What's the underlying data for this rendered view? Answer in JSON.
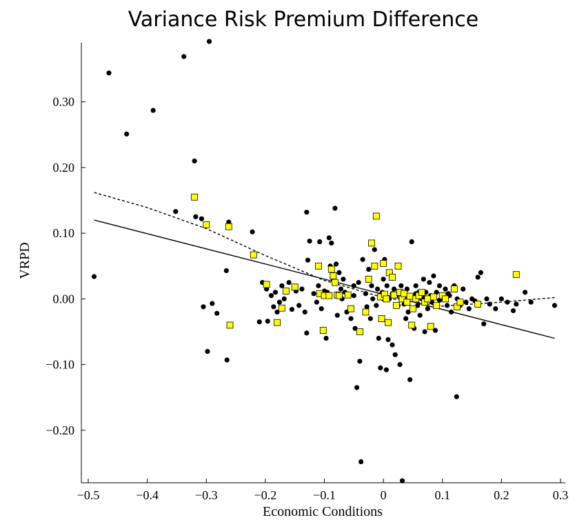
{
  "chart_data": {
    "type": "scatter",
    "title": "Variance Risk Premium Difference",
    "xlabel": "Economic Conditions",
    "ylabel": "VRPD",
    "xlim": [
      -0.5,
      0.3
    ],
    "ylim": [
      -0.28,
      0.39
    ],
    "x_ticks": [
      -0.5,
      -0.4,
      -0.3,
      -0.2,
      -0.1,
      0,
      0.1,
      0.2,
      0.3
    ],
    "x_tick_labels": [
      "−0.5",
      "−0.4",
      "−0.3",
      "−0.2",
      "−0.1",
      "0",
      "0.1",
      "0.2",
      "0.3"
    ],
    "y_ticks": [
      -0.2,
      -0.1,
      0,
      0.1,
      0.2,
      0.3
    ],
    "y_tick_labels": [
      "−0.20",
      "−0.10",
      "0.00",
      "0.10",
      "0.20",
      "0.30"
    ],
    "grid": false,
    "colors": {
      "dots": "#000000",
      "squares": "#ffff00",
      "square_edge": "#000000",
      "lines": "#000000"
    },
    "series": [
      {
        "marker": "circle",
        "points": [
          [
            -0.49,
            0.034
          ],
          [
            -0.465,
            0.344
          ],
          [
            -0.435,
            0.251
          ],
          [
            -0.39,
            0.287
          ],
          [
            -0.338,
            0.369
          ],
          [
            -0.295,
            0.392
          ],
          [
            -0.352,
            0.133
          ],
          [
            -0.32,
            0.21
          ],
          [
            -0.318,
            0.125
          ],
          [
            -0.308,
            0.122
          ],
          [
            -0.305,
            -0.012
          ],
          [
            -0.298,
            -0.08
          ],
          [
            -0.29,
            -0.007
          ],
          [
            -0.282,
            -0.022
          ],
          [
            -0.266,
            0.043
          ],
          [
            -0.265,
            -0.093
          ],
          [
            -0.262,
            0.117
          ],
          [
            -0.222,
            0.102
          ],
          [
            -0.21,
            -0.035
          ],
          [
            -0.205,
            0.025
          ],
          [
            -0.198,
            0.015
          ],
          [
            -0.196,
            -0.034
          ],
          [
            -0.19,
            0.005
          ],
          [
            -0.186,
            -0.012
          ],
          [
            -0.183,
            0.01
          ],
          [
            -0.18,
            -0.02
          ],
          [
            -0.176,
            -0.005
          ],
          [
            -0.172,
            0.02
          ],
          [
            -0.168,
            0.0
          ],
          [
            -0.16,
            0.025
          ],
          [
            -0.155,
            -0.016
          ],
          [
            -0.148,
            0.012
          ],
          [
            -0.143,
            -0.01
          ],
          [
            -0.138,
            0.015
          ],
          [
            -0.133,
            -0.02
          ],
          [
            -0.13,
            -0.052
          ],
          [
            -0.128,
            0.059
          ],
          [
            -0.13,
            0.132
          ],
          [
            -0.125,
            0.088
          ],
          [
            -0.118,
            0.008
          ],
          [
            -0.113,
            -0.005
          ],
          [
            -0.11,
            0.02
          ],
          [
            -0.108,
            0.087
          ],
          [
            -0.105,
            -0.015
          ],
          [
            -0.1,
            0.012
          ],
          [
            -0.097,
            -0.06
          ],
          [
            -0.095,
            0.01
          ],
          [
            -0.092,
            0.093
          ],
          [
            -0.09,
            0.05
          ],
          [
            -0.088,
            0.085
          ],
          [
            -0.085,
            0.03
          ],
          [
            -0.082,
            0.138
          ],
          [
            -0.08,
            0.053
          ],
          [
            -0.078,
            -0.025
          ],
          [
            -0.075,
            0.04
          ],
          [
            -0.072,
            0.015
          ],
          [
            -0.07,
            0.0
          ],
          [
            -0.065,
            0.01
          ],
          [
            -0.062,
            -0.02
          ],
          [
            -0.058,
            0.005
          ],
          [
            -0.055,
            -0.03
          ],
          [
            -0.05,
            0.02
          ],
          [
            -0.048,
            -0.045
          ],
          [
            -0.045,
            -0.135
          ],
          [
            -0.042,
            0.025
          ],
          [
            -0.04,
            -0.095
          ],
          [
            -0.038,
            -0.248
          ],
          [
            -0.035,
            0.06
          ],
          [
            -0.03,
            0.008
          ],
          [
            -0.028,
            -0.012
          ],
          [
            -0.025,
            0.045
          ],
          [
            -0.022,
            -0.03
          ],
          [
            -0.02,
            0.02
          ],
          [
            -0.018,
            0.0
          ],
          [
            -0.015,
            0.075
          ],
          [
            -0.012,
            -0.01
          ],
          [
            -0.01,
            0.015
          ],
          [
            -0.008,
            -0.06
          ],
          [
            -0.005,
            -0.105
          ],
          [
            -0.002,
            0.01
          ],
          [
            0.0,
            0.03
          ],
          [
            0.002,
            0.06
          ],
          [
            0.005,
            -0.108
          ],
          [
            0.006,
            0.02
          ],
          [
            0.008,
            -0.062
          ],
          [
            0.01,
            0.0
          ],
          [
            0.012,
            0.04
          ],
          [
            0.015,
            -0.07
          ],
          [
            0.018,
            0.015
          ],
          [
            0.02,
            -0.085
          ],
          [
            0.022,
            0.005
          ],
          [
            0.025,
            -0.01
          ],
          [
            0.028,
            -0.1
          ],
          [
            0.03,
            0.02
          ],
          [
            0.032,
            -0.277
          ],
          [
            0.035,
            0.0
          ],
          [
            0.038,
            -0.03
          ],
          [
            0.04,
            0.015
          ],
          [
            0.042,
            -0.02
          ],
          [
            0.045,
            -0.123
          ],
          [
            0.048,
            0.087
          ],
          [
            0.05,
            0.005
          ],
          [
            0.052,
            -0.045
          ],
          [
            0.055,
            0.02
          ],
          [
            0.058,
            -0.01
          ],
          [
            0.06,
            0.01
          ],
          [
            0.062,
            -0.025
          ],
          [
            0.065,
            0.0
          ],
          [
            0.068,
            0.03
          ],
          [
            0.07,
            -0.05
          ],
          [
            0.072,
            0.01
          ],
          [
            0.075,
            -0.015
          ],
          [
            0.078,
            0.025
          ],
          [
            0.08,
            0.005
          ],
          [
            0.082,
            -0.005
          ],
          [
            0.085,
            0.035
          ],
          [
            0.088,
            -0.048
          ],
          [
            0.09,
            0.01
          ],
          [
            0.092,
            -0.01
          ],
          [
            0.095,
            0.02
          ],
          [
            0.1,
            0.0
          ],
          [
            0.105,
            0.015
          ],
          [
            0.108,
            -0.01
          ],
          [
            0.112,
            0.005
          ],
          [
            0.115,
            -0.02
          ],
          [
            0.12,
            0.02
          ],
          [
            0.124,
            -0.149
          ],
          [
            0.125,
            0.0
          ],
          [
            0.13,
            -0.01
          ],
          [
            0.135,
            0.015
          ],
          [
            0.14,
            -0.005
          ],
          [
            0.145,
            -0.015
          ],
          [
            0.15,
            0.0
          ],
          [
            0.155,
            -0.003
          ],
          [
            0.16,
            0.033
          ],
          [
            0.165,
            0.04
          ],
          [
            0.17,
            -0.038
          ],
          [
            0.175,
            0.0
          ],
          [
            0.18,
            -0.008
          ],
          [
            0.19,
            -0.015
          ],
          [
            0.2,
            0.0
          ],
          [
            0.21,
            -0.005
          ],
          [
            0.22,
            -0.018
          ],
          [
            0.225,
            -0.008
          ],
          [
            0.24,
            0.01
          ],
          [
            0.25,
            -0.005
          ],
          [
            0.29,
            -0.01
          ],
          [
            0.07,
            0.002
          ],
          [
            0.095,
            -0.002
          ],
          [
            0.11,
            0.008
          ],
          [
            0.055,
            0.008
          ],
          [
            0.035,
            -0.008
          ],
          [
            -0.068,
            0.03
          ],
          [
            -0.05,
            0.005
          ],
          [
            0.0,
            0.0
          ],
          [
            0.015,
            0.008
          ],
          [
            0.04,
            0.005
          ]
        ]
      },
      {
        "marker": "square",
        "points": [
          [
            -0.32,
            0.155
          ],
          [
            -0.3,
            0.113
          ],
          [
            -0.262,
            0.11
          ],
          [
            -0.26,
            -0.04
          ],
          [
            -0.22,
            0.067
          ],
          [
            -0.198,
            0.022
          ],
          [
            -0.18,
            -0.036
          ],
          [
            -0.172,
            -0.014
          ],
          [
            -0.165,
            0.012
          ],
          [
            -0.15,
            0.018
          ],
          [
            -0.11,
            0.05
          ],
          [
            -0.108,
            0.008
          ],
          [
            -0.102,
            -0.048
          ],
          [
            -0.1,
            0.005
          ],
          [
            -0.092,
            0.005
          ],
          [
            -0.088,
            0.045
          ],
          [
            -0.085,
            0.035
          ],
          [
            -0.082,
            0.025
          ],
          [
            -0.078,
            0.006
          ],
          [
            -0.075,
            0.005
          ],
          [
            -0.06,
            0.006
          ],
          [
            -0.055,
            -0.015
          ],
          [
            -0.04,
            -0.05
          ],
          [
            -0.03,
            -0.02
          ],
          [
            -0.025,
            0.03
          ],
          [
            -0.02,
            0.085
          ],
          [
            -0.015,
            0.05
          ],
          [
            -0.012,
            0.126
          ],
          [
            -0.005,
            0.003
          ],
          [
            -0.003,
            -0.03
          ],
          [
            0.0,
            0.054
          ],
          [
            0.002,
            0.007
          ],
          [
            0.005,
            0.0
          ],
          [
            0.008,
            -0.036
          ],
          [
            0.01,
            0.04
          ],
          [
            0.015,
            0.033
          ],
          [
            0.018,
            0.006
          ],
          [
            0.022,
            -0.01
          ],
          [
            0.025,
            0.05
          ],
          [
            0.028,
            0.01
          ],
          [
            0.032,
            0.0
          ],
          [
            0.035,
            0.008
          ],
          [
            0.04,
            -0.005
          ],
          [
            0.045,
            0.004
          ],
          [
            0.048,
            -0.04
          ],
          [
            0.05,
            -0.015
          ],
          [
            0.055,
            0.0
          ],
          [
            0.06,
            0.005
          ],
          [
            0.065,
            0.01
          ],
          [
            0.07,
            -0.005
          ],
          [
            0.075,
            0.0
          ],
          [
            0.08,
            -0.042
          ],
          [
            0.085,
            0.003
          ],
          [
            0.09,
            -0.01
          ],
          [
            0.1,
            0.005
          ],
          [
            0.105,
            0.0
          ],
          [
            0.12,
            0.015
          ],
          [
            0.125,
            -0.012
          ],
          [
            0.13,
            -0.005
          ],
          [
            0.16,
            -0.008
          ],
          [
            0.225,
            0.037
          ]
        ]
      }
    ],
    "fit_lines": [
      {
        "style": "solid",
        "points": [
          [
            -0.49,
            0.12
          ],
          [
            0.29,
            -0.06
          ]
        ]
      },
      {
        "style": "dashed",
        "points": [
          [
            -0.49,
            0.162
          ],
          [
            -0.4,
            0.139
          ],
          [
            -0.3,
            0.107
          ],
          [
            -0.2,
            0.066
          ],
          [
            -0.1,
            0.028
          ],
          [
            0.0,
            0.002
          ],
          [
            0.1,
            -0.011
          ],
          [
            0.2,
            -0.005
          ],
          [
            0.29,
            0.002
          ]
        ]
      }
    ]
  }
}
